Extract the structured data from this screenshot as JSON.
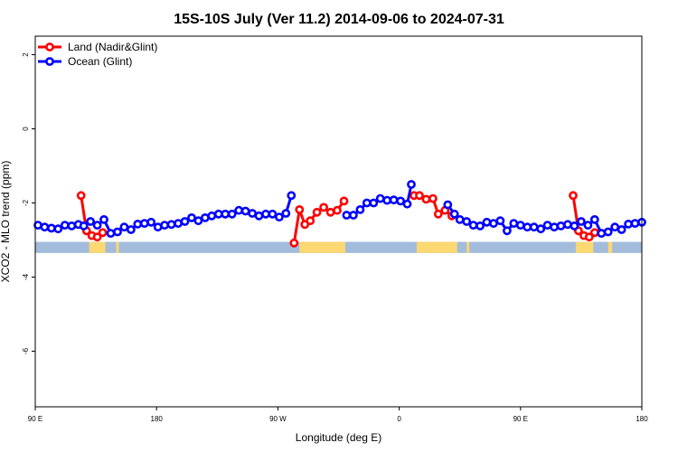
{
  "chart_data": {
    "type": "line",
    "title": "15S-10S July (Ver 11.2)   2014-09-06 to 2024-07-31",
    "xlabel": "Longitude (deg E)",
    "ylabel": "XCO2 - MLO trend (ppm)",
    "x_ticks": [
      {
        "value": 90,
        "label": "90 E"
      },
      {
        "value": 180,
        "label": "180"
      },
      {
        "value": 270,
        "label": "90 W"
      },
      {
        "value": 360,
        "label": "0"
      },
      {
        "value": 450,
        "label": "90 E"
      },
      {
        "value": 540,
        "label": "180"
      }
    ],
    "y_ticks": [
      {
        "value": 2,
        "label": "2"
      },
      {
        "value": 0,
        "label": "0"
      },
      {
        "value": -2,
        "label": "-2"
      },
      {
        "value": -4,
        "label": "-4"
      },
      {
        "value": -6,
        "label": "-6"
      }
    ],
    "xlim": [
      90,
      540
    ],
    "ylim": [
      -7.5,
      2.5
    ],
    "legend_position": "top-left",
    "land_band": {
      "ymin": -3.35,
      "ymax": -3.05,
      "ocean_color": "#a3bcdc",
      "land_color": "#fcd872"
    },
    "land_segments": [
      [
        130,
        142
      ],
      [
        150,
        152
      ],
      [
        286,
        320
      ],
      [
        373,
        403
      ],
      [
        410,
        412
      ],
      [
        491,
        504
      ],
      [
        515,
        518
      ]
    ],
    "series": [
      {
        "name": "Land (Nadir&Glint)",
        "color": "#ff0000",
        "segments": [
          [
            [
              124,
              -1.8
            ],
            [
              128,
              -2.75
            ],
            [
              132,
              -2.88
            ],
            [
              136,
              -2.92
            ],
            [
              140,
              -2.8
            ]
          ],
          [
            [
              282,
              -3.08
            ],
            [
              286,
              -2.18
            ],
            [
              290,
              -2.58
            ],
            [
              294,
              -2.48
            ],
            [
              299,
              -2.25
            ],
            [
              304,
              -2.12
            ],
            [
              309,
              -2.25
            ],
            [
              314,
              -2.2
            ],
            [
              319,
              -1.95
            ]
          ],
          [
            [
              371,
              -1.8
            ],
            [
              375,
              -1.8
            ],
            [
              380,
              -1.9
            ],
            [
              385,
              -1.88
            ],
            [
              389,
              -2.3
            ],
            [
              394,
              -2.2
            ],
            [
              399,
              -2.35
            ]
          ],
          [
            [
              489,
              -1.8
            ],
            [
              493,
              -2.75
            ],
            [
              497,
              -2.88
            ],
            [
              501,
              -2.92
            ],
            [
              505,
              -2.8
            ]
          ]
        ]
      },
      {
        "name": "Ocean (Glint)",
        "color": "#0000ff",
        "segments": [
          [
            [
              92,
              -2.6
            ],
            [
              97,
              -2.65
            ],
            [
              102,
              -2.68
            ],
            [
              107,
              -2.7
            ],
            [
              112,
              -2.6
            ],
            [
              117,
              -2.62
            ],
            [
              122,
              -2.58
            ],
            [
              126,
              -2.62
            ],
            [
              131,
              -2.5
            ],
            [
              136,
              -2.6
            ],
            [
              141,
              -2.45
            ],
            [
              146,
              -2.82
            ],
            [
              151,
              -2.78
            ],
            [
              156,
              -2.65
            ],
            [
              161,
              -2.72
            ],
            [
              166,
              -2.57
            ],
            [
              171,
              -2.55
            ],
            [
              176,
              -2.52
            ],
            [
              181,
              -2.65
            ],
            [
              186,
              -2.6
            ],
            [
              191,
              -2.58
            ],
            [
              196,
              -2.55
            ],
            [
              201,
              -2.5
            ],
            [
              206,
              -2.4
            ],
            [
              211,
              -2.48
            ],
            [
              216,
              -2.4
            ],
            [
              221,
              -2.35
            ],
            [
              226,
              -2.3
            ],
            [
              231,
              -2.3
            ],
            [
              236,
              -2.3
            ],
            [
              241,
              -2.2
            ],
            [
              246,
              -2.22
            ],
            [
              251,
              -2.28
            ],
            [
              256,
              -2.35
            ],
            [
              261,
              -2.3
            ],
            [
              266,
              -2.3
            ],
            [
              271,
              -2.38
            ],
            [
              276,
              -2.28
            ],
            [
              280,
              -1.8
            ]
          ],
          [
            [
              321,
              -2.33
            ],
            [
              326,
              -2.33
            ],
            [
              331,
              -2.18
            ],
            [
              336,
              -2.0
            ],
            [
              341,
              -2.0
            ],
            [
              346,
              -1.88
            ],
            [
              351,
              -1.93
            ],
            [
              356,
              -1.92
            ],
            [
              361,
              -1.95
            ],
            [
              366,
              -2.03
            ],
            [
              369,
              -1.5
            ]
          ],
          [
            [
              396,
              -2.05
            ],
            [
              401,
              -2.3
            ],
            [
              405,
              -2.45
            ],
            [
              410,
              -2.5
            ],
            [
              415,
              -2.6
            ],
            [
              420,
              -2.62
            ],
            [
              425,
              -2.52
            ],
            [
              430,
              -2.55
            ],
            [
              435,
              -2.48
            ],
            [
              440,
              -2.75
            ],
            [
              445,
              -2.55
            ],
            [
              450,
              -2.6
            ],
            [
              455,
              -2.65
            ],
            [
              460,
              -2.65
            ],
            [
              465,
              -2.7
            ],
            [
              470,
              -2.6
            ],
            [
              475,
              -2.65
            ],
            [
              480,
              -2.62
            ],
            [
              485,
              -2.58
            ],
            [
              490,
              -2.62
            ],
            [
              495,
              -2.5
            ],
            [
              500,
              -2.6
            ],
            [
              505,
              -2.45
            ],
            [
              510,
              -2.82
            ],
            [
              515,
              -2.78
            ],
            [
              520,
              -2.65
            ],
            [
              525,
              -2.72
            ],
            [
              530,
              -2.57
            ],
            [
              535,
              -2.55
            ],
            [
              540,
              -2.52
            ]
          ]
        ]
      }
    ]
  }
}
